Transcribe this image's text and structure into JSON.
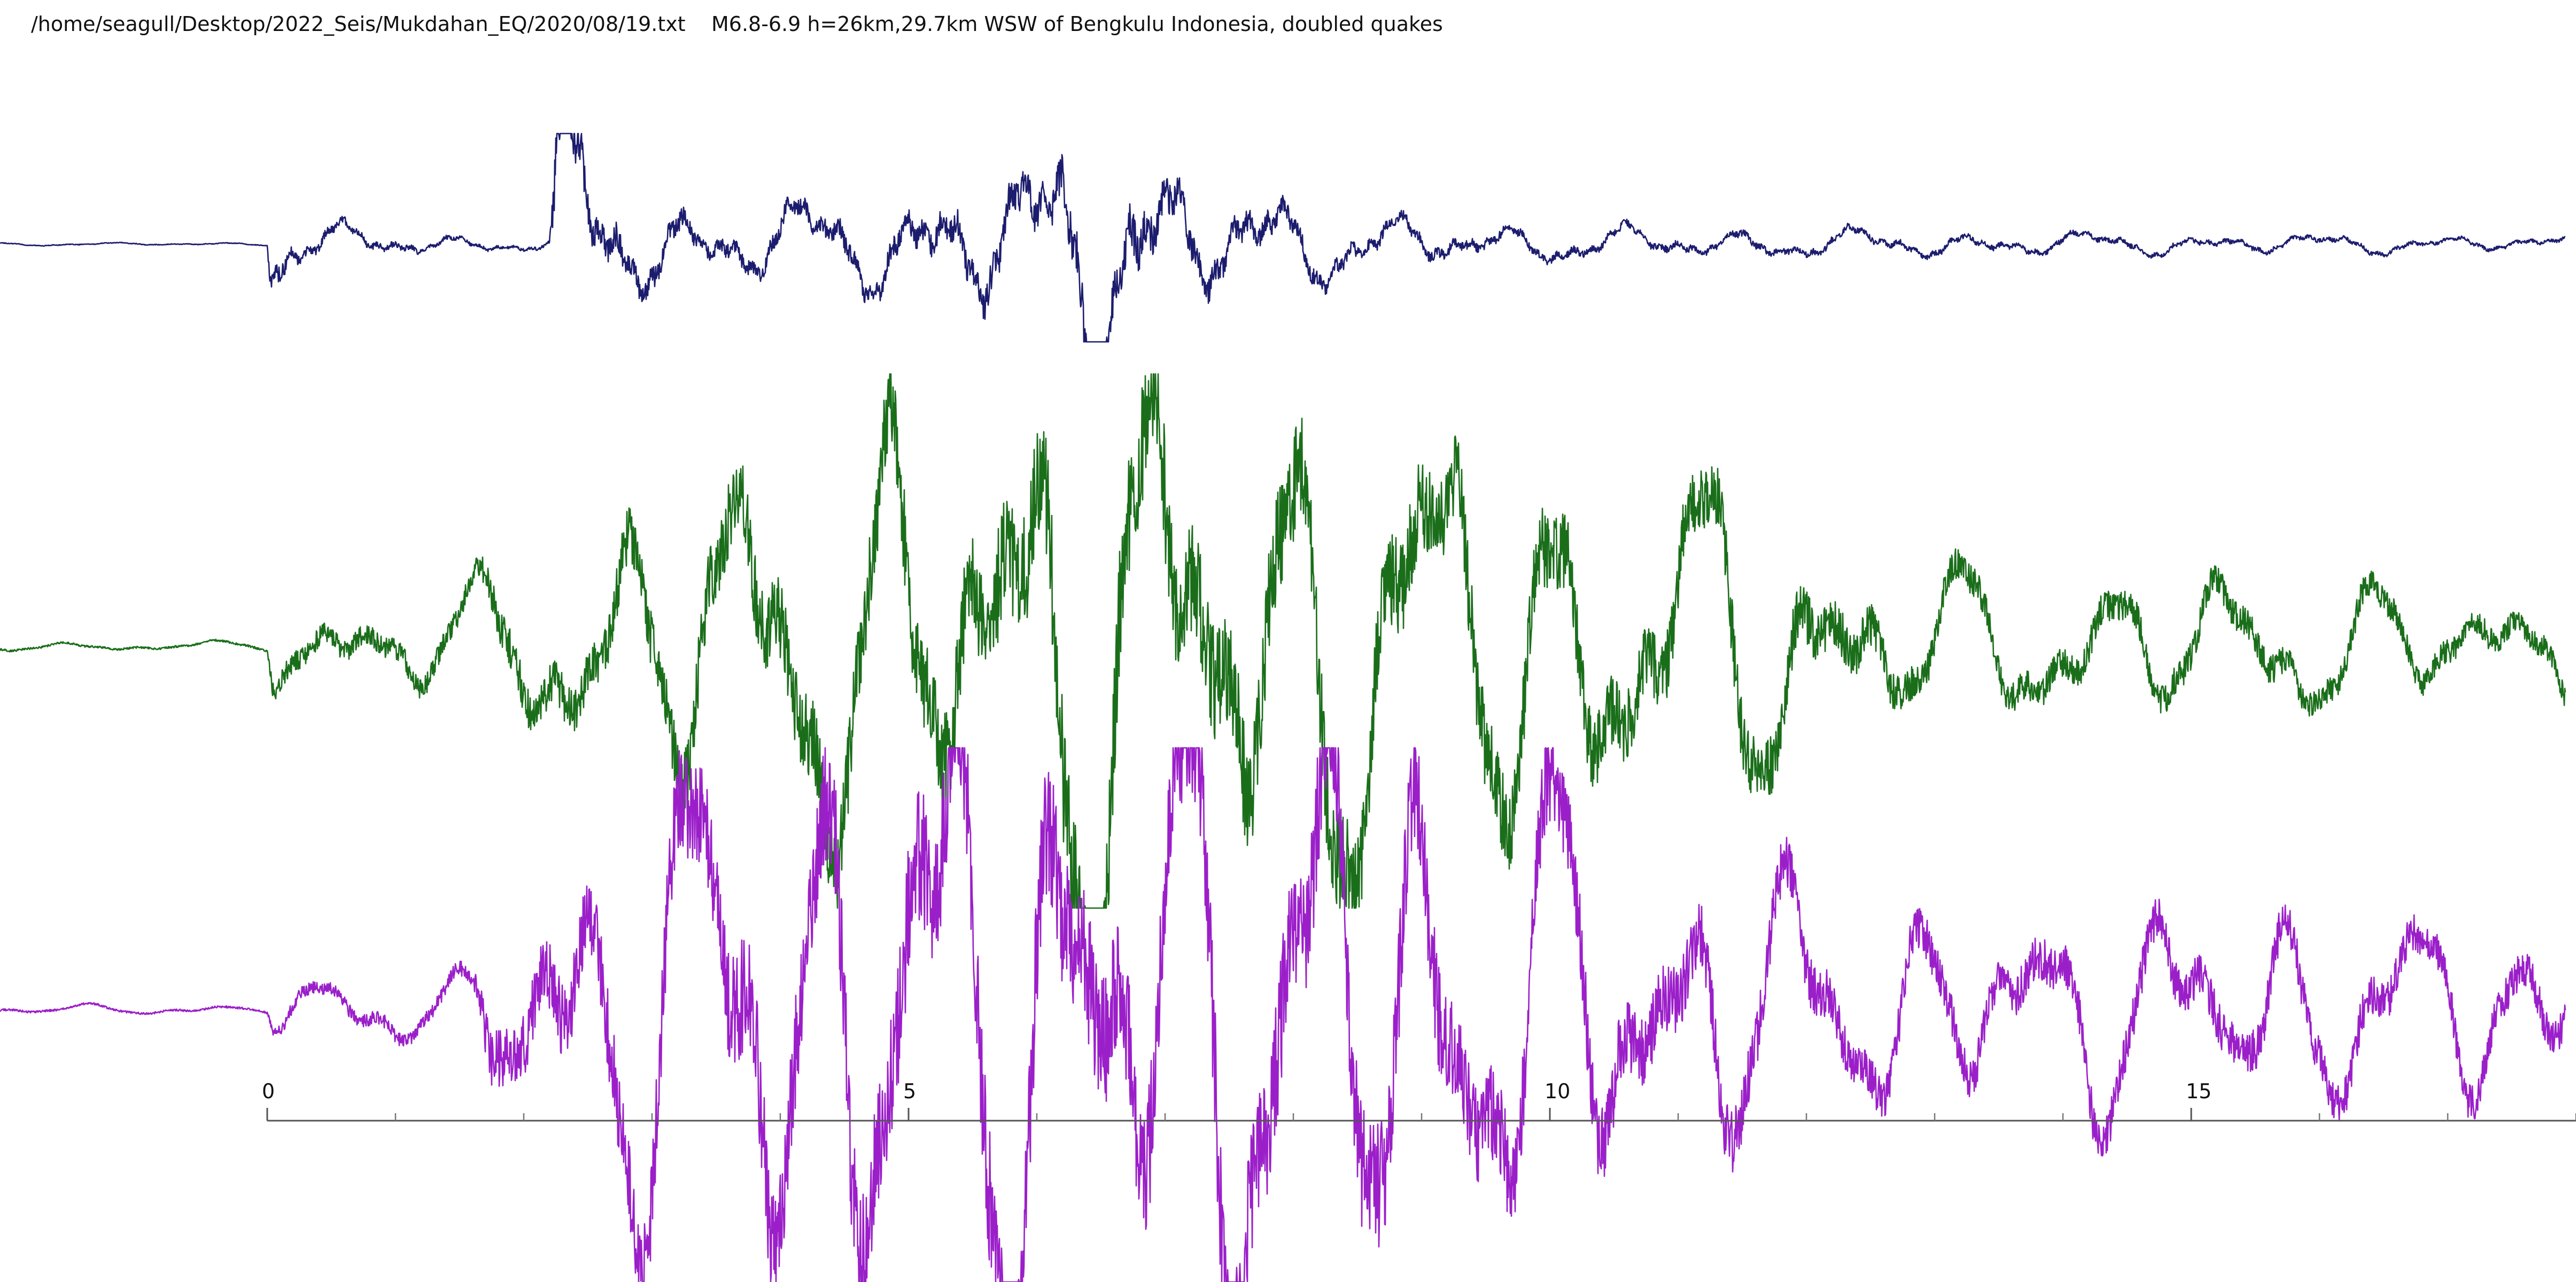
{
  "window": {
    "file_path": "/home/seagull/Desktop/2022_Seis/Mukdahan_EQ/2020/08/19.txt",
    "event_description": "M6.8-6.9 h=26km,29.7km WSW of Bengkulu Indonesia, doubled quakes"
  },
  "chart_data": {
    "type": "line",
    "title": "",
    "xlabel": "",
    "ylabel": "",
    "xlim": [
      -0.05,
      18.0
    ],
    "grid": false,
    "legend": "none",
    "x_ticks": [
      {
        "value": 0,
        "label": "0"
      },
      {
        "value": 5,
        "label": "5"
      },
      {
        "value": 10,
        "label": "10"
      },
      {
        "value": 15,
        "label": "15"
      }
    ],
    "x_minor_ticks": [
      1,
      2,
      3,
      4,
      6,
      7,
      8,
      9,
      11,
      12,
      13,
      14,
      16,
      17,
      18
    ],
    "series": [
      {
        "color": "#1c1c6e",
        "description": "first channel waveform",
        "clip": 1.0,
        "envelope": [
          [
            -2.1,
            0.01
          ],
          [
            0.0,
            0.01
          ],
          [
            0.03,
            0.35
          ],
          [
            0.3,
            0.15
          ],
          [
            1.5,
            0.06
          ],
          [
            2.2,
            0.05
          ],
          [
            2.25,
            1.0
          ],
          [
            2.6,
            0.45
          ],
          [
            3.5,
            0.22
          ],
          [
            5.0,
            0.35
          ],
          [
            6.0,
            0.55
          ],
          [
            6.4,
            0.85
          ],
          [
            7.2,
            0.45
          ],
          [
            8.5,
            0.2
          ],
          [
            10.0,
            0.12
          ],
          [
            14.0,
            0.08
          ],
          [
            17.9,
            0.05
          ]
        ]
      },
      {
        "color": "#1a6e1a",
        "description": "second channel waveform",
        "clip": 1.0,
        "envelope": [
          [
            -2.1,
            0.02
          ],
          [
            0.0,
            0.02
          ],
          [
            0.05,
            0.2
          ],
          [
            1.6,
            0.22
          ],
          [
            1.8,
            0.38
          ],
          [
            2.5,
            0.45
          ],
          [
            3.3,
            0.7
          ],
          [
            4.3,
            0.82
          ],
          [
            5.2,
            0.95
          ],
          [
            6.3,
            1.3
          ],
          [
            7.5,
            1.1
          ],
          [
            9.0,
            0.95
          ],
          [
            10.5,
            0.72
          ],
          [
            12.0,
            0.55
          ],
          [
            13.0,
            0.3
          ],
          [
            15.0,
            0.3
          ],
          [
            17.9,
            0.22
          ]
        ]
      },
      {
        "color": "#9b1fc9",
        "description": "third channel waveform",
        "clip": 1.15,
        "envelope": [
          [
            -2.1,
            0.02
          ],
          [
            0.0,
            0.02
          ],
          [
            0.05,
            0.12
          ],
          [
            1.6,
            0.15
          ],
          [
            1.7,
            0.6
          ],
          [
            2.4,
            0.75
          ],
          [
            3.3,
            1.1
          ],
          [
            5.0,
            1.35
          ],
          [
            6.5,
            1.4
          ],
          [
            8.5,
            1.3
          ],
          [
            10.5,
            0.75
          ],
          [
            11.5,
            0.62
          ],
          [
            12.5,
            0.42
          ],
          [
            15.0,
            0.45
          ],
          [
            17.9,
            0.35
          ]
        ]
      }
    ]
  }
}
